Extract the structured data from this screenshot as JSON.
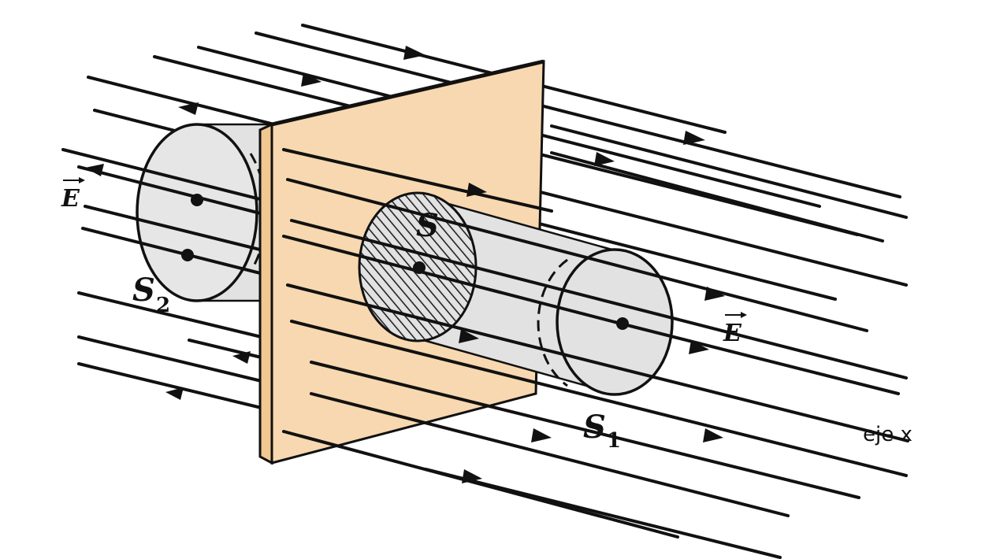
{
  "labels": {
    "field_left": "E",
    "field_right": "E",
    "surface_s": "S",
    "surface_s2_letter": "S",
    "surface_s2_sub": "2",
    "surface_s1_letter": "S",
    "surface_s1_sub": "1",
    "axis": "eje x"
  },
  "colors": {
    "plate": "#f8d8b0",
    "cylinder": "#e2e2e2",
    "ink": "#111111"
  }
}
